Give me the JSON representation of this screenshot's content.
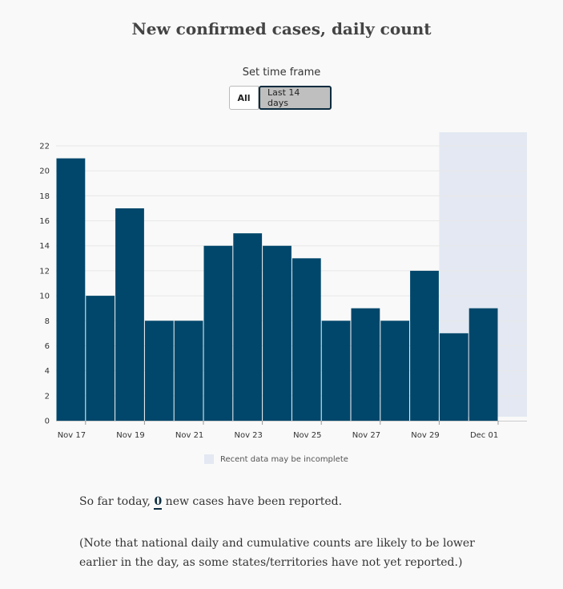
{
  "header": {
    "title": "New confirmed cases, daily count"
  },
  "time_frame": {
    "label": "Set time frame",
    "options": [
      "All",
      "Last 14 days"
    ],
    "selected": "Last 14 days"
  },
  "chart_data": {
    "type": "bar",
    "categories": [
      "Nov 17",
      "Nov 18",
      "Nov 19",
      "Nov 20",
      "Nov 21",
      "Nov 22",
      "Nov 23",
      "Nov 24",
      "Nov 25",
      "Nov 26",
      "Nov 27",
      "Nov 28",
      "Nov 29",
      "Nov 30",
      "Dec 01"
    ],
    "values": [
      21,
      10,
      17,
      8,
      8,
      14,
      15,
      14,
      13,
      8,
      9,
      8,
      12,
      7,
      9
    ],
    "x_tick_labels": [
      "Nov 17",
      "Nov 19",
      "Nov 21",
      "Nov 23",
      "Nov 25",
      "Nov 27",
      "Nov 29",
      "Dec 01"
    ],
    "y_ticks": [
      0,
      2,
      4,
      6,
      8,
      10,
      12,
      14,
      16,
      18,
      20,
      22
    ],
    "ylim": [
      0,
      22
    ],
    "grid": true,
    "bar_color": "#00476b",
    "incomplete_region": {
      "from": "Nov 30",
      "to": "Dec 01",
      "color": "#e3e8f2"
    },
    "legend": {
      "label": "Recent data may be incomplete",
      "placement": "bottom-center"
    }
  },
  "summary": {
    "prefix": "So far today,",
    "count": "0",
    "suffix": "new cases have been reported."
  },
  "note": "(Note that national daily and cumulative counts are likely to be lower earlier in the day, as some states/territories have not yet reported.)"
}
